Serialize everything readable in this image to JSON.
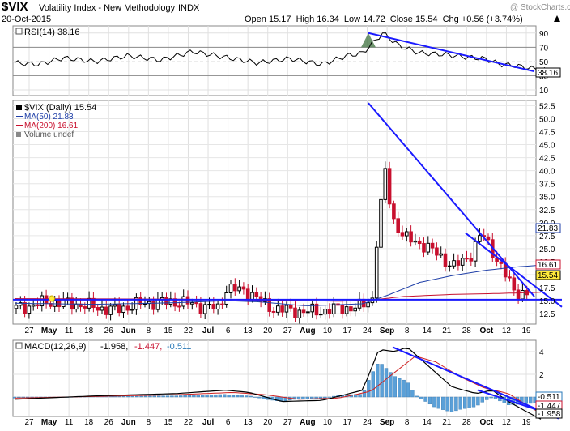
{
  "header": {
    "symbol": "$VIX",
    "name": "Volatility Index - New Methodology",
    "exchange": "INDX",
    "date": "20-Oct-2015",
    "quote_text": "Open 15.17  High 16.34  Low 14.72  Close 15.54  Chg +0.56 (+3.74%)",
    "arrow_icon": "up-triangle-icon",
    "watermark": "@ StockCharts.com"
  },
  "rsi_panel": {
    "legend": "RSI(14) 38.16",
    "last_value_label": "38.16",
    "y_ticks": [
      "90",
      "70",
      "50",
      "30",
      "10"
    ]
  },
  "price_panel": {
    "legend": {
      "title": "$VIX (Daily) 15.54",
      "ma50": "MA(50) 21.83",
      "ma200": "MA(200) 16.61",
      "volume": "Volume undef"
    },
    "ma50_label": "21.83",
    "ma200_label": "16.61",
    "close_label": "15.54",
    "y_ticks": [
      "52.5",
      "50.0",
      "47.5",
      "45.0",
      "42.5",
      "40.0",
      "37.5",
      "35.0",
      "32.5",
      "30.0",
      "27.5",
      "25.0",
      "22.5",
      "20.0",
      "17.5",
      "15.0",
      "12.5"
    ]
  },
  "macd_panel": {
    "legend_prefix": "MACD(12,26,9)",
    "macd_value": "-1.958,",
    "signal_value": "-1.447,",
    "hist_value": "-0.511",
    "labels": {
      "hist": "-0.511",
      "signal": "-1.447",
      "macd": "-1.958"
    },
    "y_ticks": [
      "4",
      "2",
      "0"
    ]
  },
  "x_axis": {
    "labels": [
      "27",
      "May",
      "11",
      "18",
      "26",
      "Jun",
      "8",
      "15",
      "22",
      "Jul",
      "6",
      "13",
      "20",
      "27",
      "Aug",
      "10",
      "17",
      "24",
      "Sep",
      "8",
      "14",
      "21",
      "28",
      "Oct",
      "12",
      "19"
    ]
  },
  "colors": {
    "up_candle": "#000000",
    "down_candle": "#c8102e",
    "ma50": "#1f3fa8",
    "ma200": "#c8102e",
    "trendline": "#1a1aff",
    "rsi_fill": "#4a7a4a",
    "macd_hist": "#5aa0d8",
    "macd_signal": "#d02020"
  },
  "chart_data": [
    {
      "type": "line",
      "title": "RSI(14)",
      "series": [
        {
          "name": "RSI(14)",
          "x_dates": [
            "Apr-27",
            "May-11",
            "May-26",
            "Jun-15",
            "Jul-06",
            "Jul-27",
            "Aug-17",
            "Aug-24",
            "Sep-08",
            "Sep-21",
            "Sep-28",
            "Oct-12",
            "Oct-19"
          ],
          "values": [
            45,
            52,
            46,
            58,
            62,
            44,
            58,
            90,
            62,
            58,
            56,
            40,
            38.16
          ]
        }
      ],
      "ylim": [
        10,
        100
      ]
    },
    {
      "type": "candlestick",
      "title": "$VIX (Daily) 15.54",
      "series": [
        {
          "name": "MA(50)",
          "last": 21.83
        },
        {
          "name": "MA(200)",
          "last": 16.61
        }
      ],
      "ohlc_last": {
        "open": 15.17,
        "high": 16.34,
        "low": 14.72,
        "close": 15.54
      },
      "ylim": [
        10.5,
        53.5
      ]
    },
    {
      "type": "line",
      "title": "MACD(12,26,9)",
      "series": [
        {
          "name": "MACD",
          "last": -1.958
        },
        {
          "name": "Signal",
          "last": -1.447
        },
        {
          "name": "Histogram",
          "last": -0.511
        }
      ]
    }
  ]
}
